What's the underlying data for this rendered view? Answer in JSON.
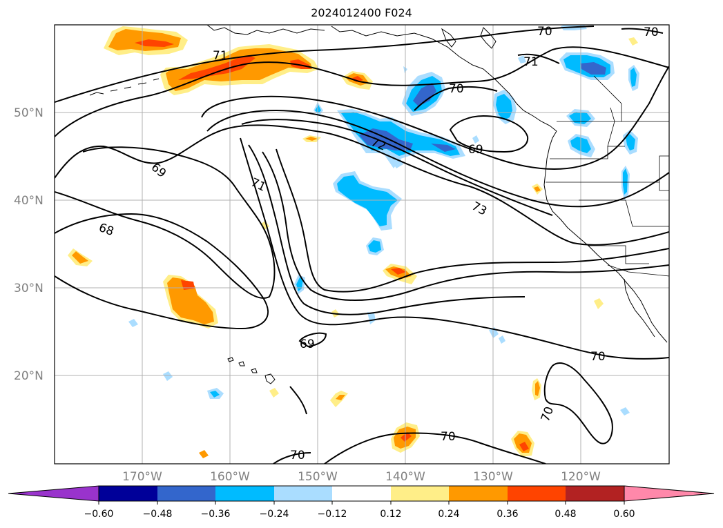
{
  "title": "2024012400 F024",
  "map": {
    "projection": "lat-lon",
    "extent": {
      "lon_min": -180,
      "lon_max": -110,
      "lat_min": 10,
      "lat_max": 60
    },
    "gridlines": true,
    "lat_labels": [
      "50°N",
      "40°N",
      "30°N",
      "20°N"
    ],
    "lon_labels": [
      "170°W",
      "160°W",
      "150°W",
      "140°W",
      "130°W",
      "120°W"
    ]
  },
  "contours": {
    "color": "#000000",
    "labels": [
      "71",
      "70",
      "70",
      "71",
      "70",
      "69",
      "72",
      "69",
      "71",
      "73",
      "68",
      "69",
      "70",
      "70",
      "70",
      "70"
    ]
  },
  "colorbar": {
    "ticks": [
      "−0.60",
      "−0.48",
      "−0.36",
      "−0.24",
      "−0.12",
      "0.12",
      "0.24",
      "0.36",
      "0.48",
      "0.60"
    ],
    "colors": [
      "#9933cc",
      "#000099",
      "#3366cc",
      "#00bbff",
      "#aaddff",
      "#ffffff",
      "#ffee88",
      "#ff9900",
      "#ff4400",
      "#b22222",
      "#ff88aa"
    ],
    "extend": "both"
  }
}
